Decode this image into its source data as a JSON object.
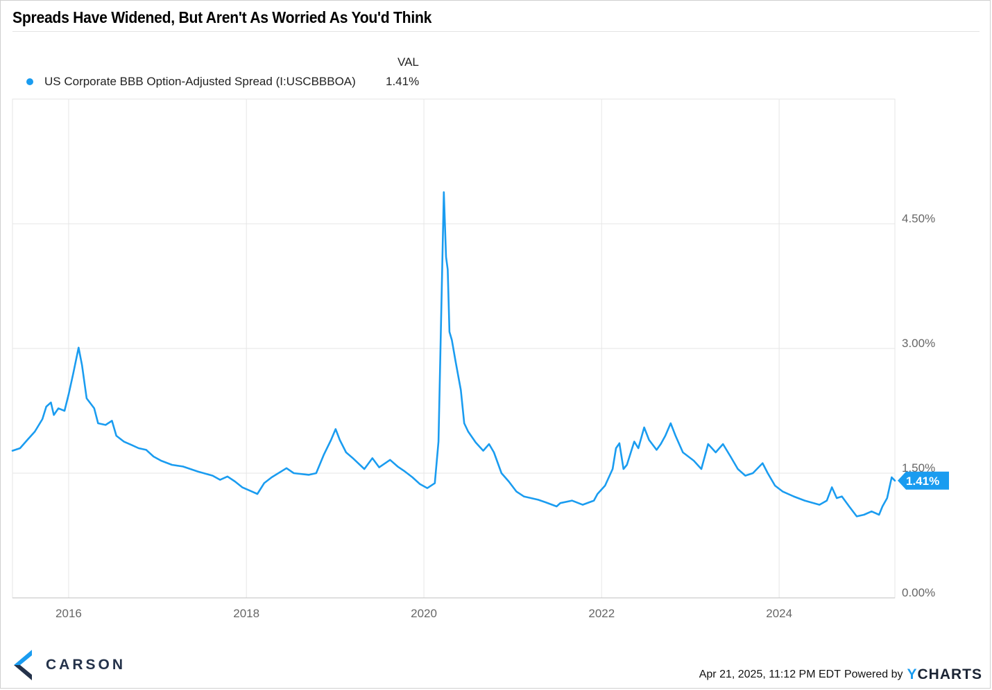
{
  "title": "Spreads Have Widened, But Aren't As Worried As You'd Think",
  "legend": {
    "column_header": "VAL",
    "series_name": "US Corporate BBB Option-Adjusted Spread (I:USCBBBOA)",
    "series_value": "1.41%"
  },
  "colors": {
    "series": "#1a9cf0",
    "grid": "#e6e6e6",
    "axis_text": "#666666"
  },
  "footer": {
    "timestamp": "Apr 21, 2025, 11:12 PM EDT",
    "powered_by": "Powered by",
    "brand_y": "Y",
    "brand_rest": "CHARTS"
  },
  "logo": {
    "text": "CARSON",
    "icon": "carson-chevron-icon"
  },
  "chart_data": {
    "type": "line",
    "xlabel": "",
    "ylabel": "",
    "x_ticks": [
      "2016",
      "2018",
      "2020",
      "2022",
      "2024"
    ],
    "y_ticks": [
      "0.00%",
      "1.50%",
      "3.00%",
      "4.50%"
    ],
    "ylim": [
      0,
      6.0
    ],
    "xlim": [
      "2015-05-15",
      "2025-04-21"
    ],
    "grid": true,
    "legend_position": "top-left",
    "last_value_label": "1.41%",
    "series": [
      {
        "name": "US Corporate BBB Option-Adjusted Spread (I:USCBBBOA)",
        "points": [
          [
            "2015-05-15",
            1.77
          ],
          [
            "2015-06-15",
            1.8
          ],
          [
            "2015-07-15",
            1.9
          ],
          [
            "2015-08-15",
            2.0
          ],
          [
            "2015-09-15",
            2.15
          ],
          [
            "2015-10-01",
            2.3
          ],
          [
            "2015-10-20",
            2.35
          ],
          [
            "2015-11-01",
            2.2
          ],
          [
            "2015-11-20",
            2.28
          ],
          [
            "2015-12-15",
            2.25
          ],
          [
            "2016-01-01",
            2.45
          ],
          [
            "2016-01-20",
            2.7
          ],
          [
            "2016-02-11",
            3.01
          ],
          [
            "2016-02-25",
            2.8
          ],
          [
            "2016-03-15",
            2.4
          ],
          [
            "2016-04-15",
            2.28
          ],
          [
            "2016-05-01",
            2.1
          ],
          [
            "2016-06-01",
            2.08
          ],
          [
            "2016-06-27",
            2.13
          ],
          [
            "2016-07-15",
            1.95
          ],
          [
            "2016-08-15",
            1.88
          ],
          [
            "2016-09-15",
            1.84
          ],
          [
            "2016-10-15",
            1.8
          ],
          [
            "2016-11-15",
            1.78
          ],
          [
            "2016-12-15",
            1.7
          ],
          [
            "2017-01-15",
            1.65
          ],
          [
            "2017-03-01",
            1.6
          ],
          [
            "2017-04-15",
            1.58
          ],
          [
            "2017-06-15",
            1.52
          ],
          [
            "2017-08-15",
            1.47
          ],
          [
            "2017-09-15",
            1.42
          ],
          [
            "2017-10-15",
            1.46
          ],
          [
            "2017-11-15",
            1.4
          ],
          [
            "2017-12-15",
            1.33
          ],
          [
            "2018-01-15",
            1.29
          ],
          [
            "2018-02-15",
            1.25
          ],
          [
            "2018-03-15",
            1.38
          ],
          [
            "2018-04-15",
            1.45
          ],
          [
            "2018-06-15",
            1.56
          ],
          [
            "2018-07-15",
            1.5
          ],
          [
            "2018-09-15",
            1.48
          ],
          [
            "2018-10-15",
            1.5
          ],
          [
            "2018-11-15",
            1.72
          ],
          [
            "2018-12-15",
            1.9
          ],
          [
            "2019-01-03",
            2.03
          ],
          [
            "2019-01-20",
            1.9
          ],
          [
            "2019-02-15",
            1.75
          ],
          [
            "2019-03-15",
            1.68
          ],
          [
            "2019-05-01",
            1.55
          ],
          [
            "2019-06-03",
            1.68
          ],
          [
            "2019-07-01",
            1.57
          ],
          [
            "2019-08-15",
            1.66
          ],
          [
            "2019-09-15",
            1.58
          ],
          [
            "2019-10-15",
            1.52
          ],
          [
            "2019-11-15",
            1.45
          ],
          [
            "2019-12-15",
            1.37
          ],
          [
            "2020-01-15",
            1.32
          ],
          [
            "2020-02-15",
            1.38
          ],
          [
            "2020-03-01",
            1.88
          ],
          [
            "2020-03-23",
            4.88
          ],
          [
            "2020-04-01",
            4.1
          ],
          [
            "2020-04-08",
            3.95
          ],
          [
            "2020-04-15",
            3.2
          ],
          [
            "2020-04-25",
            3.1
          ],
          [
            "2020-05-10",
            2.85
          ],
          [
            "2020-06-01",
            2.5
          ],
          [
            "2020-06-15",
            2.1
          ],
          [
            "2020-07-01",
            2.0
          ],
          [
            "2020-08-01",
            1.87
          ],
          [
            "2020-09-01",
            1.77
          ],
          [
            "2020-09-25",
            1.85
          ],
          [
            "2020-10-15",
            1.75
          ],
          [
            "2020-11-15",
            1.5
          ],
          [
            "2020-12-15",
            1.4
          ],
          [
            "2021-01-15",
            1.28
          ],
          [
            "2021-02-15",
            1.22
          ],
          [
            "2021-04-15",
            1.18
          ],
          [
            "2021-05-15",
            1.15
          ],
          [
            "2021-06-30",
            1.1
          ],
          [
            "2021-07-15",
            1.14
          ],
          [
            "2021-09-01",
            1.17
          ],
          [
            "2021-10-15",
            1.12
          ],
          [
            "2021-11-30",
            1.17
          ],
          [
            "2021-12-15",
            1.25
          ],
          [
            "2022-01-15",
            1.35
          ],
          [
            "2022-02-15",
            1.55
          ],
          [
            "2022-03-01",
            1.8
          ],
          [
            "2022-03-15",
            1.86
          ],
          [
            "2022-04-01",
            1.55
          ],
          [
            "2022-04-15",
            1.6
          ],
          [
            "2022-05-15",
            1.88
          ],
          [
            "2022-06-01",
            1.8
          ],
          [
            "2022-06-25",
            2.05
          ],
          [
            "2022-07-15",
            1.9
          ],
          [
            "2022-08-15",
            1.78
          ],
          [
            "2022-09-01",
            1.85
          ],
          [
            "2022-09-20",
            1.95
          ],
          [
            "2022-10-12",
            2.1
          ],
          [
            "2022-11-01",
            1.95
          ],
          [
            "2022-12-01",
            1.75
          ],
          [
            "2023-01-15",
            1.65
          ],
          [
            "2023-02-15",
            1.55
          ],
          [
            "2023-03-15",
            1.85
          ],
          [
            "2023-04-15",
            1.75
          ],
          [
            "2023-05-15",
            1.85
          ],
          [
            "2023-06-15",
            1.7
          ],
          [
            "2023-07-15",
            1.55
          ],
          [
            "2023-08-15",
            1.47
          ],
          [
            "2023-09-15",
            1.5
          ],
          [
            "2023-10-25",
            1.62
          ],
          [
            "2023-11-15",
            1.5
          ],
          [
            "2023-12-15",
            1.35
          ],
          [
            "2024-01-15",
            1.28
          ],
          [
            "2024-03-01",
            1.22
          ],
          [
            "2024-04-15",
            1.17
          ],
          [
            "2024-06-15",
            1.12
          ],
          [
            "2024-07-15",
            1.17
          ],
          [
            "2024-08-05",
            1.33
          ],
          [
            "2024-08-25",
            1.2
          ],
          [
            "2024-09-15",
            1.22
          ],
          [
            "2024-10-15",
            1.1
          ],
          [
            "2024-11-15",
            0.98
          ],
          [
            "2024-12-15",
            1.0
          ],
          [
            "2025-01-15",
            1.04
          ],
          [
            "2025-02-15",
            1.0
          ],
          [
            "2025-03-01",
            1.1
          ],
          [
            "2025-03-20",
            1.2
          ],
          [
            "2025-04-08",
            1.45
          ],
          [
            "2025-04-21",
            1.41
          ]
        ]
      }
    ]
  }
}
